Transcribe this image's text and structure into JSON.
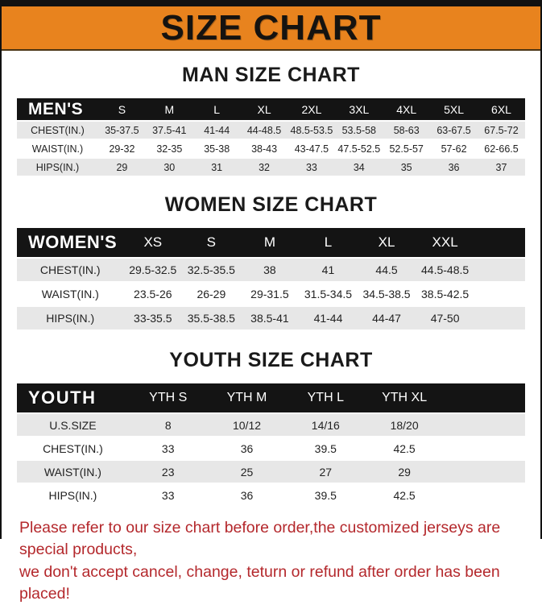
{
  "banner": {
    "title": "SIZE CHART"
  },
  "colors": {
    "banner_orange": "#E8831E",
    "table_header_black": "#141414",
    "row_gray": "#E7E7E7",
    "disclaimer_red": "#B4282C"
  },
  "sections": [
    {
      "heading": "MAN SIZE CHART",
      "table": {
        "title": "MEN'S",
        "columns": [
          "S",
          "M",
          "L",
          "XL",
          "2XL",
          "3XL",
          "4XL",
          "5XL",
          "6XL"
        ],
        "rows": [
          {
            "label": "CHEST(IN.)",
            "values": [
              "35-37.5",
              "37.5-41",
              "41-44",
              "44-48.5",
              "48.5-53.5",
              "53.5-58",
              "58-63",
              "63-67.5",
              "67.5-72"
            ]
          },
          {
            "label": "WAIST(IN.)",
            "values": [
              "29-32",
              "32-35",
              "35-38",
              "38-43",
              "43-47.5",
              "47.5-52.5",
              "52.5-57",
              "57-62",
              "62-66.5"
            ]
          },
          {
            "label": "HIPS(IN.)",
            "values": [
              "29",
              "30",
              "31",
              "32",
              "33",
              "34",
              "35",
              "36",
              "37"
            ]
          }
        ]
      }
    },
    {
      "heading": "WOMEN SIZE CHART",
      "table": {
        "title": "WOMEN'S",
        "columns": [
          "XS",
          "S",
          "M",
          "L",
          "XL",
          "XXL"
        ],
        "rows": [
          {
            "label": "CHEST(IN.)",
            "values": [
              "29.5-32.5",
              "32.5-35.5",
              "38",
              "41",
              "44.5",
              "44.5-48.5"
            ]
          },
          {
            "label": "WAIST(IN.)",
            "values": [
              "23.5-26",
              "26-29",
              "29-31.5",
              "31.5-34.5",
              "34.5-38.5",
              "38.5-42.5"
            ]
          },
          {
            "label": "HIPS(IN.)",
            "values": [
              "33-35.5",
              "35.5-38.5",
              "38.5-41",
              "41-44",
              "44-47",
              "47-50"
            ]
          }
        ]
      }
    },
    {
      "heading": "YOUTH SIZE CHART",
      "table": {
        "title": "YOUTH",
        "columns": [
          "YTH S",
          "YTH M",
          "YTH L",
          "YTH XL"
        ],
        "rows": [
          {
            "label": "U.S.SIZE",
            "values": [
              "8",
              "10/12",
              "14/16",
              "18/20"
            ]
          },
          {
            "label": "CHEST(IN.)",
            "values": [
              "33",
              "36",
              "39.5",
              "42.5"
            ]
          },
          {
            "label": "WAIST(IN.)",
            "values": [
              "23",
              "25",
              "27",
              "29"
            ]
          },
          {
            "label": "HIPS(IN.)",
            "values": [
              "33",
              "36",
              "39.5",
              "42.5"
            ]
          }
        ]
      }
    }
  ],
  "disclaimer": {
    "line1": "Please refer to our size chart before order,the customized jerseys are special products,",
    "line2": "we don't accept cancel, change, teturn or refund after order has been placed!"
  }
}
